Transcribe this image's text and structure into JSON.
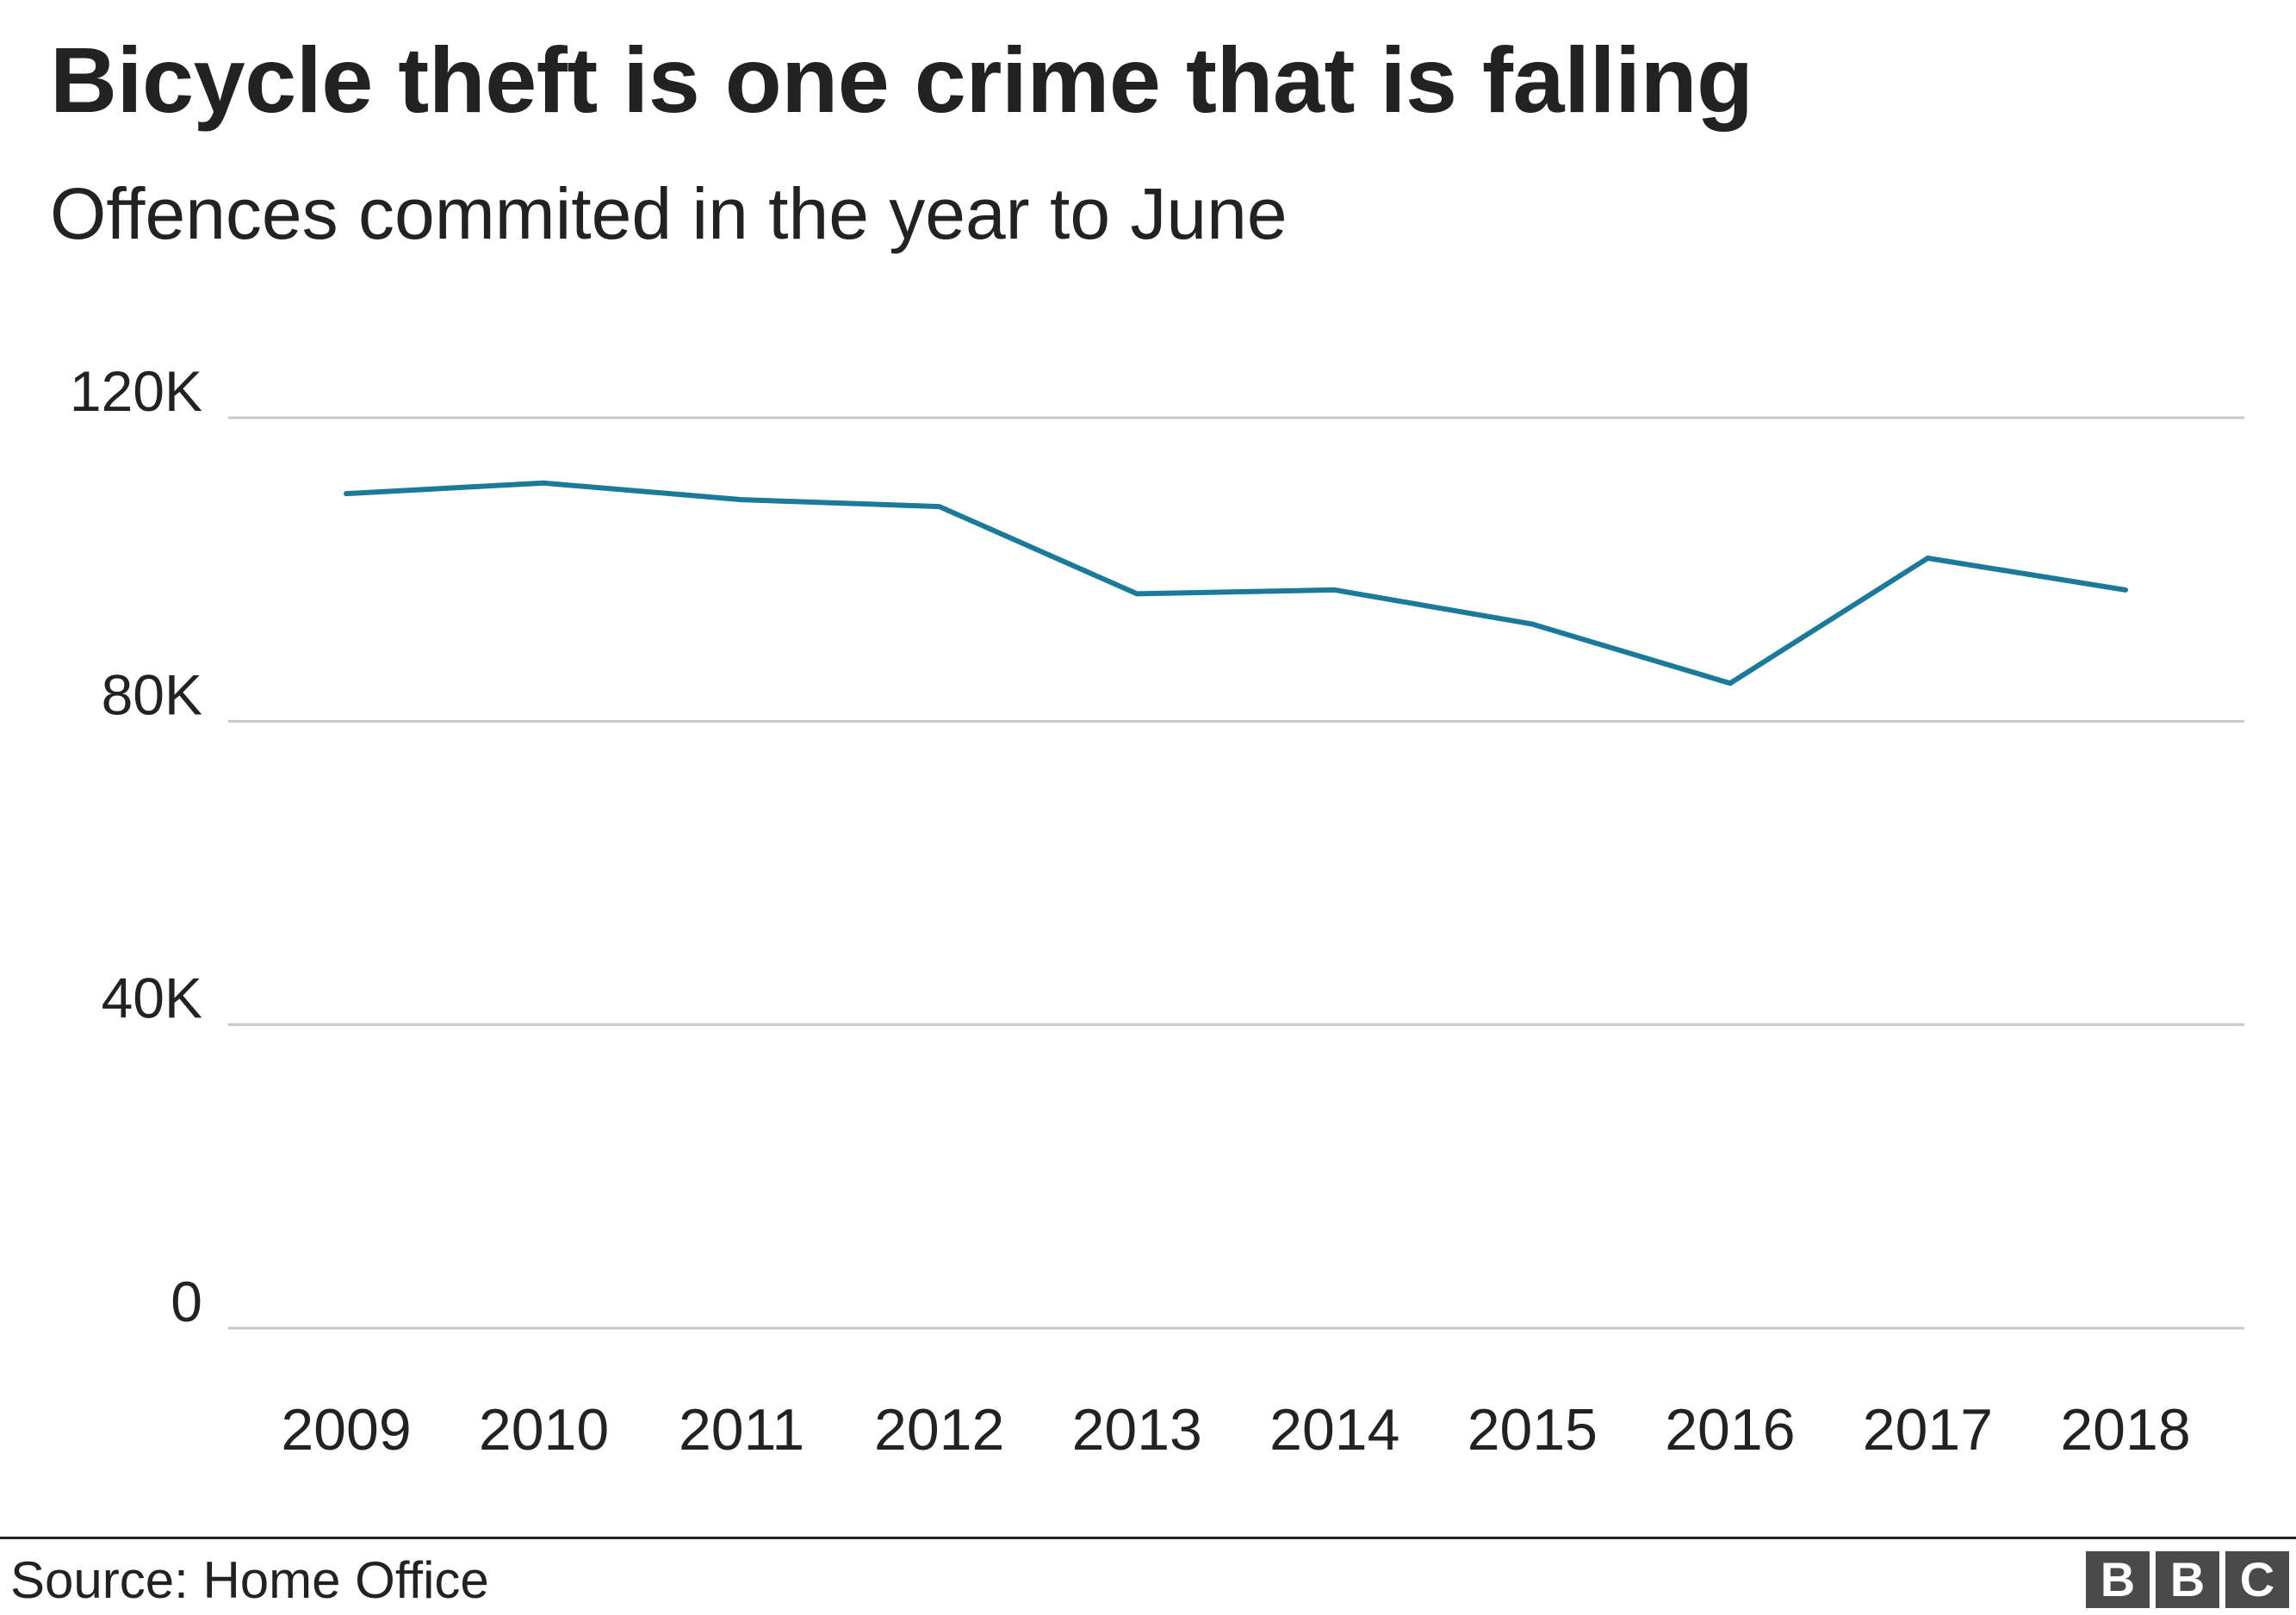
{
  "header": {
    "title": "Bicycle theft is one crime that is falling",
    "subtitle": "Offences commited in the year to June"
  },
  "footer": {
    "source": "Source: Home Office",
    "logo_letters": [
      "B",
      "B",
      "C"
    ]
  },
  "colors": {
    "line": "#1b7a99",
    "grid": "#c8c8c8",
    "text": "#222222",
    "logo_bg": "#4a4a4a"
  },
  "chart_data": {
    "type": "line",
    "categories": [
      "2009",
      "2010",
      "2011",
      "2012",
      "2013",
      "2014",
      "2015",
      "2016",
      "2017",
      "2018"
    ],
    "series": [
      {
        "values": [
          110000,
          111400,
          109200,
          108300,
          96800,
          97300,
          92800,
          85000,
          101500,
          97300
        ]
      }
    ],
    "yticks": [
      0,
      40000,
      80000,
      120000
    ],
    "ytick_labels": [
      "0",
      "40K",
      "80K",
      "120K"
    ],
    "ylim": [
      0,
      120000
    ],
    "grid": true,
    "legend": "none"
  }
}
